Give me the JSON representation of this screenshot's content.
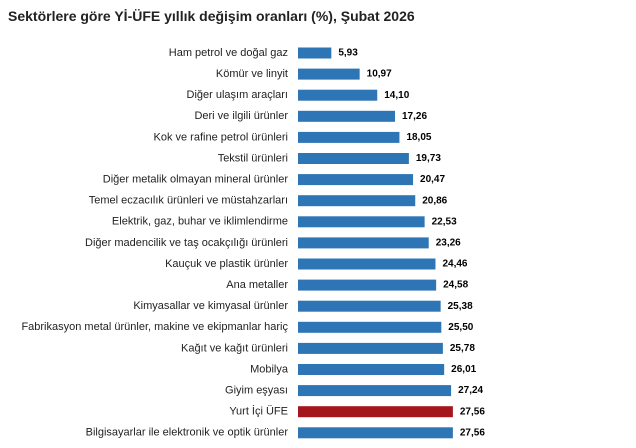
{
  "chart_data": {
    "type": "hbar",
    "title": "Sektörlere göre Yİ-ÜFE yıllık değişim oranları (%), Şubat 2026",
    "categories": [
      "Ham petrol ve doğal gaz",
      "Kömür ve linyit",
      "Diğer ulaşım araçları",
      "Deri ve ilgili ürünler",
      "Kok ve rafine petrol ürünleri",
      "Tekstil ürünleri",
      "Diğer metalik olmayan mineral ürünler",
      "Temel eczacılık ürünleri ve müstahzarları",
      "Elektrik, gaz, buhar ve iklimlendirme",
      "Diğer madencilik ve taş ocakçılığı ürünleri",
      "Kauçuk ve plastik ürünler",
      "Ana metaller",
      "Kimyasallar ve kimyasal ürünler",
      "Fabrikasyon metal ürünler, makine ve ekipmanlar hariç",
      "Kağıt ve kağıt ürünleri",
      "Mobilya",
      "Giyim eşyası",
      "Yurt İçi ÜFE",
      "Bilgisayarlar ile elektronik ve optik ürünler"
    ],
    "values": [
      5.93,
      10.97,
      14.1,
      17.26,
      18.05,
      19.73,
      20.47,
      20.86,
      22.53,
      23.26,
      24.46,
      24.58,
      25.38,
      25.5,
      25.78,
      26.01,
      27.24,
      27.56,
      27.56
    ],
    "value_labels": [
      "5,93",
      "10,97",
      "14,10",
      "17,26",
      "18,05",
      "19,73",
      "20,47",
      "20,86",
      "22,53",
      "23,26",
      "24,46",
      "24,58",
      "25,38",
      "25,50",
      "25,78",
      "26,01",
      "27,24",
      "27,56",
      "27,56"
    ],
    "colors": [
      "#2e75b6",
      "#2e75b6",
      "#2e75b6",
      "#2e75b6",
      "#2e75b6",
      "#2e75b6",
      "#2e75b6",
      "#2e75b6",
      "#2e75b6",
      "#2e75b6",
      "#2e75b6",
      "#2e75b6",
      "#2e75b6",
      "#2e75b6",
      "#2e75b6",
      "#2e75b6",
      "#2e75b6",
      "#a5161c",
      "#2e75b6"
    ]
  }
}
